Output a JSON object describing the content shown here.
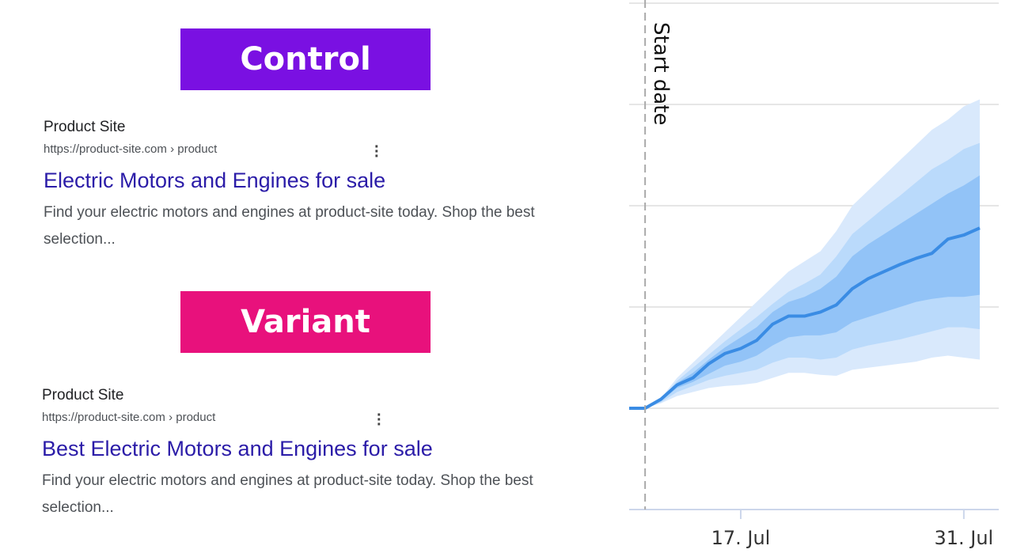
{
  "control": {
    "label": "Control",
    "result": {
      "site": "Product Site",
      "url": "https://product-site.com › product",
      "title": "Electric Motors and Engines for sale",
      "snippet": "Find your electric motors and engines at product-site today. Shop the best selection..."
    }
  },
  "variant": {
    "label": "Variant",
    "result": {
      "site": "Product Site",
      "url": "https://product-site.com › product",
      "title": "Best Electric Motors and Engines for sale",
      "snippet": "Find your electric motors and engines at product-site today. Shop the best selection..."
    }
  },
  "chart_data": {
    "type": "line",
    "x": [
      10,
      11,
      12,
      13,
      14,
      15,
      16,
      17,
      18,
      19,
      20,
      21,
      22,
      23,
      24,
      25,
      26,
      27,
      28,
      29,
      30,
      31,
      32
    ],
    "values": [
      0,
      0,
      0.09,
      0.23,
      0.3,
      0.44,
      0.54,
      0.59,
      0.67,
      0.83,
      0.91,
      0.91,
      0.95,
      1.02,
      1.18,
      1.28,
      1.35,
      1.42,
      1.48,
      1.53,
      1.67,
      1.71,
      1.78
    ],
    "color": "#3a8ce4",
    "bands": [
      {
        "color": "#d9e9fc",
        "upper": [
          0,
          0,
          0.1,
          0.3,
          0.45,
          0.6,
          0.75,
          0.9,
          1.05,
          1.2,
          1.35,
          1.45,
          1.55,
          1.75,
          2.0,
          2.15,
          2.3,
          2.45,
          2.6,
          2.75,
          2.85,
          2.98,
          3.05
        ],
        "lower": [
          0,
          0,
          0.05,
          0.12,
          0.16,
          0.2,
          0.22,
          0.23,
          0.25,
          0.3,
          0.35,
          0.35,
          0.33,
          0.32,
          0.38,
          0.4,
          0.42,
          0.44,
          0.46,
          0.5,
          0.52,
          0.5,
          0.48
        ]
      },
      {
        "color": "#badafb",
        "upper": [
          0,
          0,
          0.09,
          0.27,
          0.4,
          0.53,
          0.66,
          0.78,
          0.9,
          1.03,
          1.15,
          1.23,
          1.32,
          1.5,
          1.72,
          1.85,
          1.98,
          2.1,
          2.23,
          2.36,
          2.45,
          2.56,
          2.62
        ],
        "lower": [
          0,
          0,
          0.06,
          0.16,
          0.22,
          0.28,
          0.32,
          0.35,
          0.38,
          0.45,
          0.5,
          0.5,
          0.48,
          0.5,
          0.58,
          0.62,
          0.65,
          0.68,
          0.72,
          0.76,
          0.8,
          0.8,
          0.78
        ]
      },
      {
        "color": "#92c3f7",
        "upper": [
          0,
          0,
          0.08,
          0.25,
          0.35,
          0.48,
          0.6,
          0.7,
          0.8,
          0.95,
          1.05,
          1.1,
          1.18,
          1.3,
          1.5,
          1.62,
          1.72,
          1.82,
          1.92,
          2.02,
          2.12,
          2.2,
          2.3
        ],
        "lower": [
          0,
          0,
          0.07,
          0.2,
          0.26,
          0.34,
          0.42,
          0.46,
          0.52,
          0.62,
          0.7,
          0.72,
          0.72,
          0.75,
          0.85,
          0.9,
          0.95,
          1.0,
          1.05,
          1.08,
          1.1,
          1.1,
          1.12
        ]
      }
    ],
    "annotation": {
      "text": "Start date",
      "x": 11
    },
    "xlim": [
      10,
      32
    ],
    "xticks": [
      {
        "value": 17,
        "label": "17. Jul"
      },
      {
        "value": 31,
        "label": "31. Jul"
      }
    ],
    "ylim": [
      -1,
      4
    ],
    "yticks": [
      0,
      1,
      2,
      3,
      4
    ],
    "grid": true
  }
}
